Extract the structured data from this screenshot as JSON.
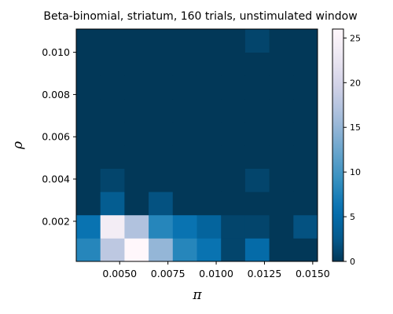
{
  "chart_data": {
    "type": "heatmap",
    "title": "Beta-binomial, striatum, 160 trials, unstimulated window",
    "xlabel": "π",
    "ylabel": "ρ",
    "x_ticks": [
      "0.0050",
      "0.0075",
      "0.0100",
      "0.0125",
      "0.0150"
    ],
    "x_tick_values": [
      0.005,
      0.0075,
      0.01,
      0.0125,
      0.015
    ],
    "y_ticks": [
      "0.002",
      "0.004",
      "0.006",
      "0.008",
      "0.010"
    ],
    "y_tick_values": [
      0.002,
      0.004,
      0.006,
      0.008,
      0.01
    ],
    "x_bin_edges": [
      0.00275,
      0.004,
      0.00525,
      0.0065,
      0.00775,
      0.009,
      0.01025,
      0.0115,
      0.01275,
      0.014,
      0.01525
    ],
    "y_bin_edges": [
      0.0001,
      0.0012,
      0.0023,
      0.0034,
      0.0045,
      0.0056,
      0.0067,
      0.0078,
      0.0089,
      0.01,
      0.0111
    ],
    "xlim": [
      0.00275,
      0.01525
    ],
    "ylim": [
      0.0001,
      0.0111
    ],
    "colorbar": {
      "min": 0,
      "max": 26,
      "ticks": [
        0,
        5,
        10,
        15,
        20,
        25
      ],
      "colormap": "PuBu_r"
    },
    "values": [
      [
        8,
        18,
        26,
        15,
        8,
        6,
        1,
        5,
        0,
        0
      ],
      [
        6,
        24,
        17,
        8,
        6,
        4,
        1,
        1,
        0,
        2
      ],
      [
        0,
        3,
        0,
        2,
        0,
        0,
        0,
        0,
        0,
        0
      ],
      [
        0,
        1,
        0,
        0,
        0,
        0,
        0,
        1,
        0,
        0
      ],
      [
        0,
        0,
        0,
        0,
        0,
        0,
        0,
        0,
        0,
        0
      ],
      [
        0,
        0,
        0,
        0,
        0,
        0,
        0,
        0,
        0,
        0
      ],
      [
        0,
        0,
        0,
        0,
        0,
        0,
        0,
        0,
        0,
        0
      ],
      [
        0,
        0,
        0,
        0,
        0,
        0,
        0,
        0,
        0,
        0
      ],
      [
        0,
        0,
        0,
        0,
        0,
        0,
        0,
        0,
        0,
        0
      ],
      [
        0,
        0,
        0,
        0,
        0,
        0,
        0,
        1,
        0,
        0
      ]
    ]
  }
}
